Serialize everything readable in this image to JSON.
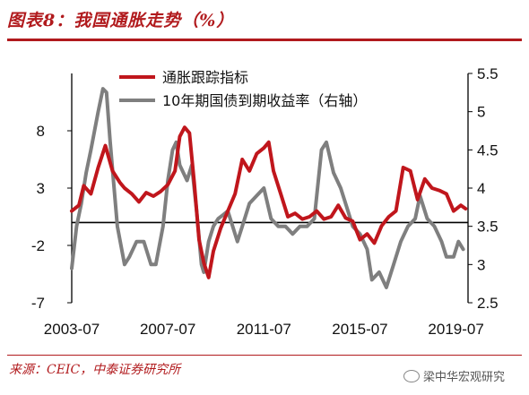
{
  "header": {
    "title": "图表8：我国通胀走势（%）"
  },
  "footer": {
    "source": "来源：CEIC，中泰证券研究所",
    "brand": "梁中华宏观研究"
  },
  "chart_data": {
    "type": "line",
    "title": "图表8：我国通胀走势（%）",
    "x_tick_labels": [
      "2003-07",
      "2007-07",
      "2011-07",
      "2015-07",
      "2019-07"
    ],
    "x_tick_years": [
      2003.5,
      2007.5,
      2011.5,
      2015.5,
      2019.5
    ],
    "xlim": [
      2003.5,
      2020.0
    ],
    "y_left": {
      "lim": [
        -7,
        13
      ],
      "ticks": [
        -7,
        -2,
        3,
        8
      ],
      "tick_labels": [
        "-7",
        "-2",
        "3",
        "8"
      ]
    },
    "y_right": {
      "lim": [
        2.5,
        5.5
      ],
      "ticks": [
        2.5,
        3,
        3.5,
        4,
        4.5,
        5,
        5.5
      ],
      "tick_labels": [
        "2.5",
        "3",
        "3.5",
        "4",
        "4.5",
        "5",
        "5.5"
      ]
    },
    "zero_line": 0,
    "legend_position": "top-left",
    "series": [
      {
        "name": "通胀跟踪指标",
        "axis": "left",
        "color": "#c0161c",
        "x": [
          2003.5,
          2003.8,
          2004.0,
          2004.3,
          2004.6,
          2004.9,
          2005.2,
          2005.5,
          2005.7,
          2006.0,
          2006.3,
          2006.6,
          2006.9,
          2007.2,
          2007.5,
          2007.8,
          2008.0,
          2008.2,
          2008.4,
          2008.6,
          2008.8,
          2009.0,
          2009.2,
          2009.4,
          2009.7,
          2010.0,
          2010.3,
          2010.6,
          2010.9,
          2011.2,
          2011.5,
          2011.7,
          2011.9,
          2012.2,
          2012.5,
          2012.8,
          2013.1,
          2013.4,
          2013.7,
          2014.0,
          2014.3,
          2014.6,
          2014.9,
          2015.2,
          2015.5,
          2015.8,
          2016.1,
          2016.4,
          2016.7,
          2017.0,
          2017.3,
          2017.6,
          2017.9,
          2018.2,
          2018.5,
          2018.8,
          2019.1,
          2019.4,
          2019.7,
          2019.9
        ],
        "y": [
          1.0,
          1.5,
          3.2,
          2.5,
          4.8,
          6.7,
          4.5,
          3.5,
          3.0,
          2.5,
          1.8,
          2.6,
          2.3,
          2.7,
          3.3,
          4.5,
          7.5,
          8.3,
          7.8,
          3.5,
          -1.5,
          -3.5,
          -4.8,
          -2.5,
          -0.5,
          1.0,
          2.5,
          5.5,
          4.5,
          6.0,
          6.5,
          7.0,
          4.5,
          2.5,
          0.5,
          0.8,
          0.3,
          0.5,
          1.0,
          0.3,
          0.5,
          1.5,
          0.4,
          0.1,
          -1.5,
          -1.0,
          -1.8,
          -0.3,
          0.5,
          1.0,
          4.8,
          4.5,
          2.0,
          3.8,
          3.0,
          2.8,
          2.5,
          1.0,
          1.5,
          1.2
        ]
      },
      {
        "name": "10年期国债到期收益率（右轴）",
        "axis": "right",
        "color": "#7f7f7f",
        "x": [
          2003.5,
          2003.7,
          2003.9,
          2004.1,
          2004.3,
          2004.6,
          2004.8,
          2004.95,
          2005.1,
          2005.4,
          2005.7,
          2005.9,
          2006.2,
          2006.5,
          2006.8,
          2007.0,
          2007.3,
          2007.5,
          2007.7,
          2007.85,
          2008.0,
          2008.3,
          2008.5,
          2008.7,
          2008.9,
          2009.0,
          2009.2,
          2009.4,
          2009.6,
          2009.8,
          2010.0,
          2010.2,
          2010.4,
          2010.6,
          2010.9,
          2011.2,
          2011.5,
          2011.8,
          2012.1,
          2012.4,
          2012.7,
          2013.0,
          2013.3,
          2013.6,
          2013.9,
          2014.1,
          2014.4,
          2014.7,
          2015.0,
          2015.2,
          2015.5,
          2015.8,
          2016.0,
          2016.3,
          2016.6,
          2016.9,
          2017.2,
          2017.5,
          2017.8,
          2018.0,
          2018.3,
          2018.6,
          2018.9,
          2019.1,
          2019.4,
          2019.6,
          2019.8
        ],
        "y": [
          2.95,
          3.5,
          3.8,
          4.2,
          4.5,
          5.0,
          5.3,
          5.25,
          4.6,
          3.5,
          3.0,
          3.1,
          3.3,
          3.3,
          3.0,
          3.0,
          3.5,
          4.1,
          4.5,
          4.6,
          4.3,
          4.1,
          4.3,
          3.7,
          3.0,
          2.9,
          3.3,
          3.5,
          3.6,
          3.65,
          3.7,
          3.5,
          3.3,
          3.5,
          3.8,
          3.9,
          4.0,
          3.6,
          3.5,
          3.5,
          3.4,
          3.5,
          3.5,
          3.6,
          4.5,
          4.6,
          4.2,
          4.0,
          3.7,
          3.5,
          3.4,
          3.2,
          2.8,
          2.9,
          2.7,
          3.0,
          3.3,
          3.5,
          3.6,
          3.9,
          3.6,
          3.5,
          3.3,
          3.1,
          3.1,
          3.3,
          3.2
        ]
      }
    ]
  }
}
